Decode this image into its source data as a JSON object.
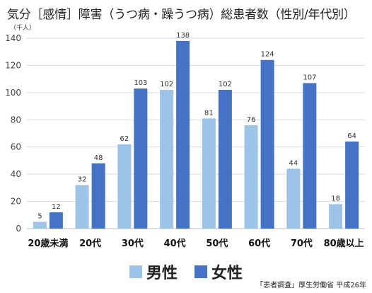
{
  "title": "気分［感情］障害（うつ病・躁うつ病）総患者数（性別/年代別）",
  "source": "「患者調査」厚生労働省 平成26年",
  "chart_data": {
    "type": "bar",
    "unit": "（千人）",
    "categories": [
      "20歳未満",
      "20代",
      "30代",
      "40代",
      "50代",
      "60代",
      "70代",
      "80歳以上"
    ],
    "series": [
      {
        "name": "男性",
        "color": "#9dc3e6",
        "values": [
          5,
          32,
          62,
          102,
          81,
          76,
          44,
          18
        ]
      },
      {
        "name": "女性",
        "color": "#4472c4",
        "values": [
          12,
          48,
          103,
          138,
          102,
          124,
          107,
          64
        ]
      }
    ],
    "ylim": [
      0,
      140
    ],
    "yticks": [
      0,
      20,
      40,
      60,
      80,
      100,
      120,
      140
    ],
    "grid": true,
    "legend": "bottom"
  }
}
